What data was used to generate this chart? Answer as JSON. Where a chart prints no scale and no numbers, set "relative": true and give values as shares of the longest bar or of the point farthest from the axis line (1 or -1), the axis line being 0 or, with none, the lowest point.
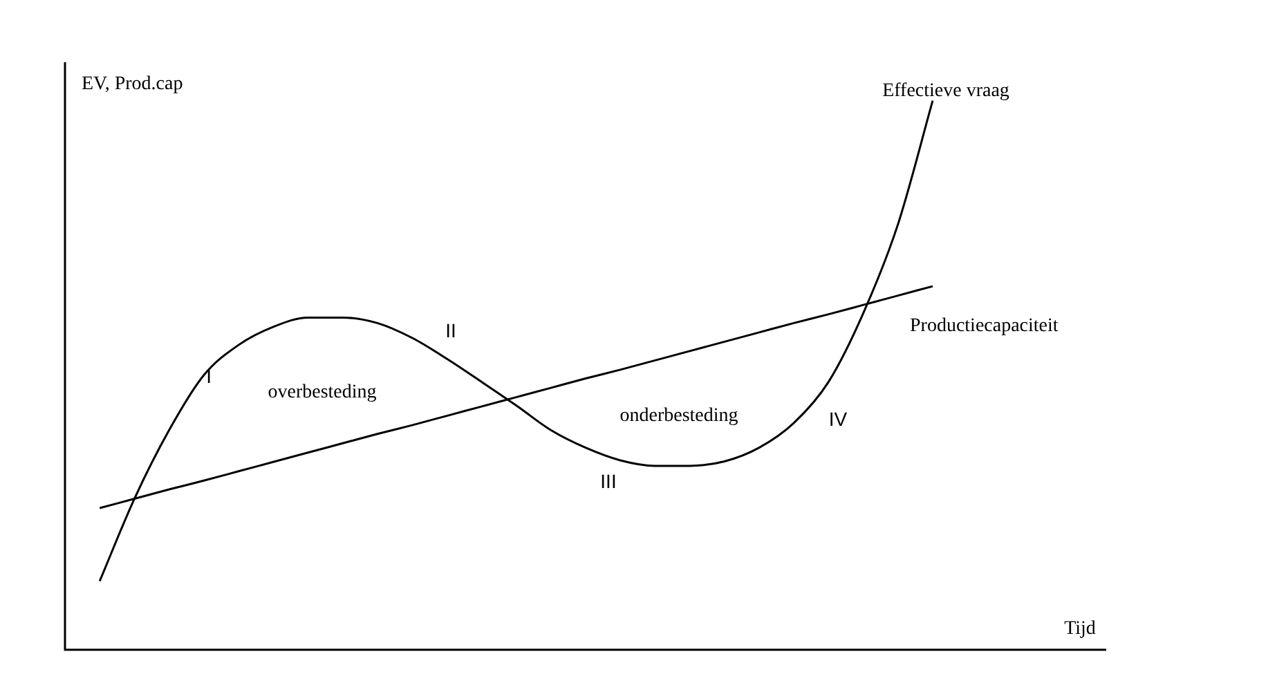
{
  "chart_data": {
    "type": "line",
    "relative": true,
    "xlabel": "Tijd",
    "ylabel": "EV, Prod.cap",
    "categories": [
      null,
      null,
      null,
      null,
      null,
      null,
      null,
      null,
      null,
      null,
      null,
      null,
      null,
      null,
      null,
      null,
      null,
      null,
      null,
      null,
      null,
      null,
      null,
      null,
      null,
      null,
      null,
      null,
      null,
      null,
      null
    ],
    "series": [
      {
        "name": "Effectieve vraag",
        "color": "#000000",
        "values": [
          null,
          0.125,
          0.275,
          0.4,
          0.5,
          0.555,
          0.588,
          0.605,
          0.605,
          0.595,
          0.568,
          0.53,
          0.488,
          0.445,
          0.4,
          0.368,
          0.345,
          0.335,
          0.335,
          0.343,
          0.368,
          0.413,
          0.488,
          0.613,
          0.775,
          1.0,
          null,
          null,
          null,
          null,
          null
        ]
      },
      {
        "name": "Productiecapaciteit",
        "color": "#000000",
        "values": [
          null,
          0.258,
          0.275,
          0.292,
          0.308,
          0.325,
          0.342,
          0.359,
          0.376,
          0.393,
          0.409,
          0.426,
          0.443,
          0.46,
          0.477,
          0.494,
          0.51,
          0.527,
          0.544,
          0.561,
          0.578,
          0.595,
          0.611,
          0.628,
          0.645,
          0.662,
          null,
          null,
          null,
          null,
          null
        ]
      }
    ],
    "annotations": [
      "I",
      "II",
      "III",
      "IV",
      "overbesteding",
      "onderbesteding"
    ],
    "legend": false,
    "marker": "none",
    "line_style": "solid"
  }
}
